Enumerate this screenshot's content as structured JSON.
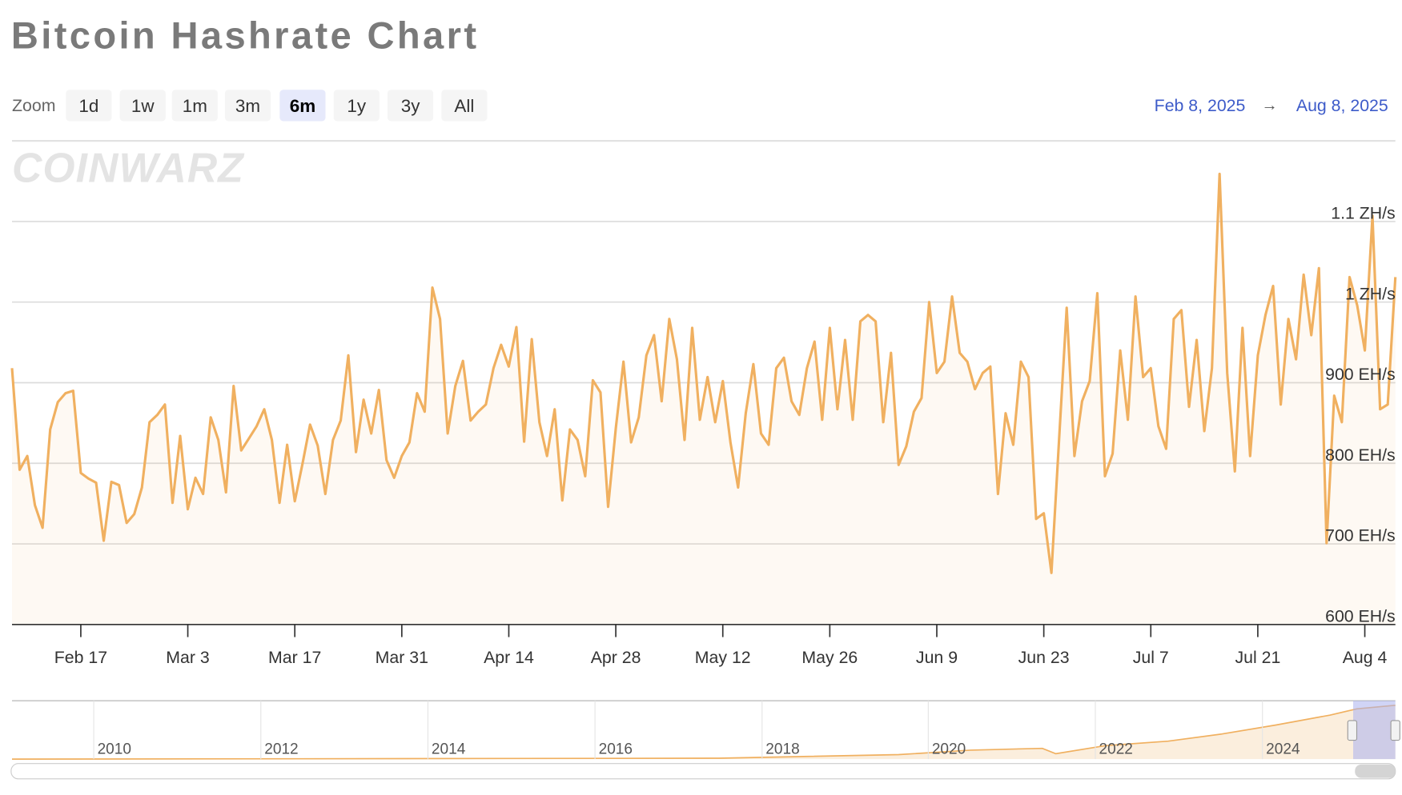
{
  "header": {
    "title": "Bitcoin Hashrate Chart"
  },
  "zoom": {
    "label": "Zoom",
    "options": [
      "1d",
      "1w",
      "1m",
      "3m",
      "6m",
      "1y",
      "3y",
      "All"
    ],
    "active": "6m"
  },
  "range": {
    "from": "Feb 8, 2025",
    "to": "Aug 8, 2025"
  },
  "watermark": "COINWARZ",
  "chart_data": {
    "type": "line",
    "color": "#f0b060",
    "area": true,
    "grid": true,
    "xlim": [
      "2025-02-08",
      "2025-08-08"
    ],
    "ylim": [
      600,
      1200
    ],
    "yticks": [
      {
        "value": 600,
        "label": "600 EH/s"
      },
      {
        "value": 700,
        "label": "700 EH/s"
      },
      {
        "value": 800,
        "label": "800 EH/s"
      },
      {
        "value": 900,
        "label": "900 EH/s"
      },
      {
        "value": 1000,
        "label": "1 ZH/s"
      },
      {
        "value": 1100,
        "label": "1.1 ZH/s"
      }
    ],
    "xticks": [
      {
        "value": "2025-02-17",
        "label": "Feb 17"
      },
      {
        "value": "2025-03-03",
        "label": "Mar 3"
      },
      {
        "value": "2025-03-17",
        "label": "Mar 17"
      },
      {
        "value": "2025-03-31",
        "label": "Mar 31"
      },
      {
        "value": "2025-04-14",
        "label": "Apr 14"
      },
      {
        "value": "2025-04-28",
        "label": "Apr 28"
      },
      {
        "value": "2025-05-12",
        "label": "May 12"
      },
      {
        "value": "2025-05-26",
        "label": "May 26"
      },
      {
        "value": "2025-06-09",
        "label": "Jun 9"
      },
      {
        "value": "2025-06-23",
        "label": "Jun 23"
      },
      {
        "value": "2025-07-07",
        "label": "Jul 7"
      },
      {
        "value": "2025-07-21",
        "label": "Jul 21"
      },
      {
        "value": "2025-08-04",
        "label": "Aug 4"
      }
    ],
    "x": [
      "2025-02-08",
      "2025-02-09",
      "2025-02-10",
      "2025-02-11",
      "2025-02-12",
      "2025-02-13",
      "2025-02-14",
      "2025-02-15",
      "2025-02-16",
      "2025-02-17",
      "2025-02-18",
      "2025-02-19",
      "2025-02-20",
      "2025-02-21",
      "2025-02-22",
      "2025-02-23",
      "2025-02-24",
      "2025-02-25",
      "2025-02-26",
      "2025-02-27",
      "2025-02-28",
      "2025-03-01",
      "2025-03-02",
      "2025-03-03",
      "2025-03-04",
      "2025-03-05",
      "2025-03-06",
      "2025-03-07",
      "2025-03-08",
      "2025-03-09",
      "2025-03-10",
      "2025-03-11",
      "2025-03-12",
      "2025-03-13",
      "2025-03-14",
      "2025-03-15",
      "2025-03-16",
      "2025-03-17",
      "2025-03-18",
      "2025-03-19",
      "2025-03-20",
      "2025-03-21",
      "2025-03-22",
      "2025-03-23",
      "2025-03-24",
      "2025-03-25",
      "2025-03-26",
      "2025-03-27",
      "2025-03-28",
      "2025-03-29",
      "2025-03-30",
      "2025-03-31",
      "2025-04-01",
      "2025-04-02",
      "2025-04-03",
      "2025-04-04",
      "2025-04-05",
      "2025-04-06",
      "2025-04-07",
      "2025-04-08",
      "2025-04-09",
      "2025-04-10",
      "2025-04-11",
      "2025-04-12",
      "2025-04-13",
      "2025-04-14",
      "2025-04-15",
      "2025-04-16",
      "2025-04-17",
      "2025-04-18",
      "2025-04-19",
      "2025-04-20",
      "2025-04-21",
      "2025-04-22",
      "2025-04-23",
      "2025-04-24",
      "2025-04-25",
      "2025-04-26",
      "2025-04-27",
      "2025-04-28",
      "2025-04-29",
      "2025-04-30",
      "2025-05-01",
      "2025-05-02",
      "2025-05-03",
      "2025-05-04",
      "2025-05-05",
      "2025-05-06",
      "2025-05-07",
      "2025-05-08",
      "2025-05-09",
      "2025-05-10",
      "2025-05-11",
      "2025-05-12",
      "2025-05-13",
      "2025-05-14",
      "2025-05-15",
      "2025-05-16",
      "2025-05-17",
      "2025-05-18",
      "2025-05-19",
      "2025-05-20",
      "2025-05-21",
      "2025-05-22",
      "2025-05-23",
      "2025-05-24",
      "2025-05-25",
      "2025-05-26",
      "2025-05-27",
      "2025-05-28",
      "2025-05-29",
      "2025-05-30",
      "2025-05-31",
      "2025-06-01",
      "2025-06-02",
      "2025-06-03",
      "2025-06-04",
      "2025-06-05",
      "2025-06-06",
      "2025-06-07",
      "2025-06-08",
      "2025-06-09",
      "2025-06-10",
      "2025-06-11",
      "2025-06-12",
      "2025-06-13",
      "2025-06-14",
      "2025-06-15",
      "2025-06-16",
      "2025-06-17",
      "2025-06-18",
      "2025-06-19",
      "2025-06-20",
      "2025-06-21",
      "2025-06-22",
      "2025-06-23",
      "2025-06-24",
      "2025-06-25",
      "2025-06-26",
      "2025-06-27",
      "2025-06-28",
      "2025-06-29",
      "2025-06-30",
      "2025-07-01",
      "2025-07-02",
      "2025-07-03",
      "2025-07-04",
      "2025-07-05",
      "2025-07-06",
      "2025-07-07",
      "2025-07-08",
      "2025-07-09",
      "2025-07-10",
      "2025-07-11",
      "2025-07-12",
      "2025-07-13",
      "2025-07-14",
      "2025-07-15",
      "2025-07-16",
      "2025-07-17",
      "2025-07-18",
      "2025-07-19",
      "2025-07-20",
      "2025-07-21",
      "2025-07-22",
      "2025-07-23",
      "2025-07-24",
      "2025-07-25",
      "2025-07-26",
      "2025-07-27",
      "2025-07-28",
      "2025-07-29",
      "2025-07-30",
      "2025-07-31",
      "2025-08-01",
      "2025-08-02",
      "2025-08-03",
      "2025-08-04",
      "2025-08-05",
      "2025-08-06",
      "2025-08-07",
      "2025-08-08"
    ],
    "values": [
      918,
      792,
      809,
      748,
      720,
      842,
      876,
      887,
      890,
      788,
      781,
      776,
      704,
      777,
      773,
      726,
      737,
      770,
      851,
      860,
      873,
      751,
      834,
      743,
      782,
      762,
      857,
      829,
      764,
      896,
      816,
      831,
      846,
      867,
      829,
      751,
      823,
      753,
      799,
      848,
      822,
      762,
      829,
      853,
      934,
      814,
      879,
      837,
      891,
      804,
      782,
      809,
      826,
      887,
      864,
      1018,
      979,
      837,
      896,
      927,
      853,
      864,
      873,
      918,
      947,
      920,
      969,
      827,
      954,
      851,
      809,
      867,
      754,
      842,
      829,
      784,
      903,
      888,
      746,
      844,
      926,
      826,
      857,
      934,
      959,
      877,
      979,
      929,
      829,
      968,
      854,
      907,
      851,
      902,
      826,
      770,
      862,
      923,
      837,
      823,
      918,
      931,
      877,
      860,
      918,
      951,
      854,
      968,
      867,
      953,
      854,
      976,
      984,
      976,
      851,
      937,
      798,
      821,
      864,
      881,
      1000,
      912,
      926,
      1007,
      937,
      926,
      892,
      912,
      920,
      762,
      862,
      823,
      926,
      907,
      731,
      738,
      664,
      829,
      993,
      809,
      877,
      902,
      1011,
      784,
      812,
      940,
      854,
      1007,
      907,
      918,
      846,
      818,
      979,
      990,
      870,
      953,
      840,
      918,
      1159,
      912,
      790,
      968,
      809,
      934,
      984,
      1020,
      873,
      979,
      929,
      1034,
      959,
      1042,
      701,
      884,
      851,
      1031,
      996,
      940,
      1107,
      867,
      873,
      1031
    ]
  },
  "navigator": {
    "labels": [
      "2010",
      "2012",
      "2014",
      "2016",
      "2018",
      "2020",
      "2022",
      "2024"
    ]
  }
}
